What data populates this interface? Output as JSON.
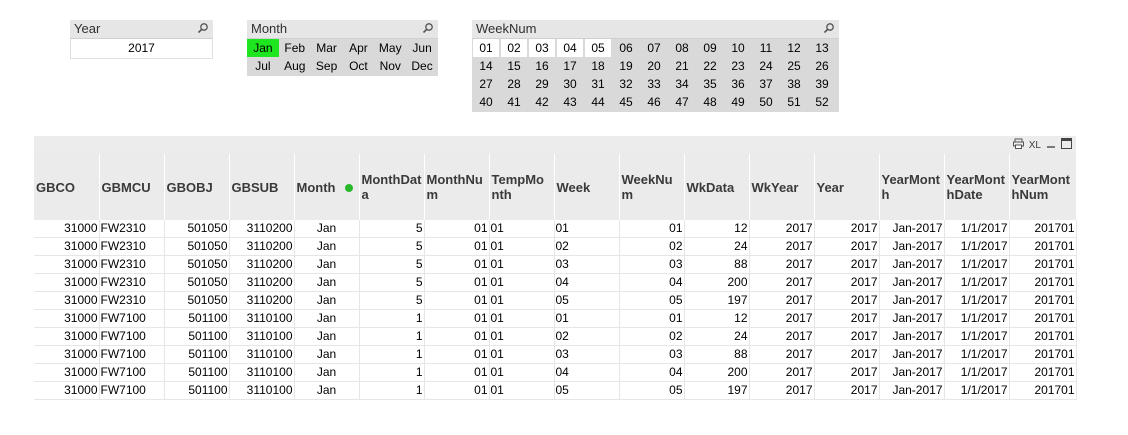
{
  "listboxes": {
    "year": {
      "title": "Year",
      "values": [
        "2017"
      ]
    },
    "month": {
      "title": "Month",
      "rows": [
        [
          "Jan",
          "Feb",
          "Mar",
          "Apr",
          "May",
          "Jun"
        ],
        [
          "Jul",
          "Aug",
          "Sep",
          "Oct",
          "Nov",
          "Dec"
        ]
      ],
      "selected": "Jan"
    },
    "weeknum": {
      "title": "WeekNum",
      "rows": [
        [
          "01",
          "02",
          "03",
          "04",
          "05",
          "06",
          "07",
          "08",
          "09",
          "10",
          "11",
          "12",
          "13"
        ],
        [
          "14",
          "15",
          "16",
          "17",
          "18",
          "19",
          "20",
          "21",
          "22",
          "23",
          "24",
          "25",
          "26"
        ],
        [
          "27",
          "28",
          "29",
          "30",
          "31",
          "32",
          "33",
          "34",
          "35",
          "36",
          "37",
          "38",
          "39"
        ],
        [
          "40",
          "41",
          "42",
          "43",
          "44",
          "45",
          "46",
          "47",
          "48",
          "49",
          "50",
          "51",
          "52"
        ]
      ],
      "selected": [
        "01",
        "02",
        "03",
        "04",
        "05"
      ]
    }
  },
  "table": {
    "xl_label": "XL",
    "columns": [
      "GBCO",
      "GBMCU",
      "GBOBJ",
      "GBSUB",
      "Month",
      "MonthData",
      "MonthNum",
      "TempMonth",
      "Week",
      "WeekNum",
      "WkData",
      "WkYear",
      "Year",
      "YearMonth",
      "YearMonthDate",
      "YearMonthNum"
    ],
    "rows": [
      [
        "31000",
        "FW2310",
        "501050",
        "3110200",
        "Jan",
        "5",
        "01",
        "01",
        "01",
        "01",
        "12",
        "2017",
        "2017",
        "Jan-2017",
        "1/1/2017",
        "201701"
      ],
      [
        "31000",
        "FW2310",
        "501050",
        "3110200",
        "Jan",
        "5",
        "01",
        "01",
        "02",
        "02",
        "24",
        "2017",
        "2017",
        "Jan-2017",
        "1/1/2017",
        "201701"
      ],
      [
        "31000",
        "FW2310",
        "501050",
        "3110200",
        "Jan",
        "5",
        "01",
        "01",
        "03",
        "03",
        "88",
        "2017",
        "2017",
        "Jan-2017",
        "1/1/2017",
        "201701"
      ],
      [
        "31000",
        "FW2310",
        "501050",
        "3110200",
        "Jan",
        "5",
        "01",
        "01",
        "04",
        "04",
        "200",
        "2017",
        "2017",
        "Jan-2017",
        "1/1/2017",
        "201701"
      ],
      [
        "31000",
        "FW2310",
        "501050",
        "3110200",
        "Jan",
        "5",
        "01",
        "01",
        "05",
        "05",
        "197",
        "2017",
        "2017",
        "Jan-2017",
        "1/1/2017",
        "201701"
      ],
      [
        "31000",
        "FW7100",
        "501100",
        "3110100",
        "Jan",
        "1",
        "01",
        "01",
        "01",
        "01",
        "12",
        "2017",
        "2017",
        "Jan-2017",
        "1/1/2017",
        "201701"
      ],
      [
        "31000",
        "FW7100",
        "501100",
        "3110100",
        "Jan",
        "1",
        "01",
        "01",
        "02",
        "02",
        "24",
        "2017",
        "2017",
        "Jan-2017",
        "1/1/2017",
        "201701"
      ],
      [
        "31000",
        "FW7100",
        "501100",
        "3110100",
        "Jan",
        "1",
        "01",
        "01",
        "03",
        "03",
        "88",
        "2017",
        "2017",
        "Jan-2017",
        "1/1/2017",
        "201701"
      ],
      [
        "31000",
        "FW7100",
        "501100",
        "3110100",
        "Jan",
        "1",
        "01",
        "01",
        "04",
        "04",
        "200",
        "2017",
        "2017",
        "Jan-2017",
        "1/1/2017",
        "201701"
      ],
      [
        "31000",
        "FW7100",
        "501100",
        "3110100",
        "Jan",
        "1",
        "01",
        "01",
        "05",
        "05",
        "197",
        "2017",
        "2017",
        "Jan-2017",
        "1/1/2017",
        "201701"
      ]
    ]
  },
  "colors": {
    "selected_green": "#1ee61e",
    "excluded_gray": "#d9d9d9",
    "header_bg": "#ebebeb"
  },
  "icons": {
    "search": "search-icon",
    "print": "print-icon",
    "maximize": "maximize-icon"
  }
}
